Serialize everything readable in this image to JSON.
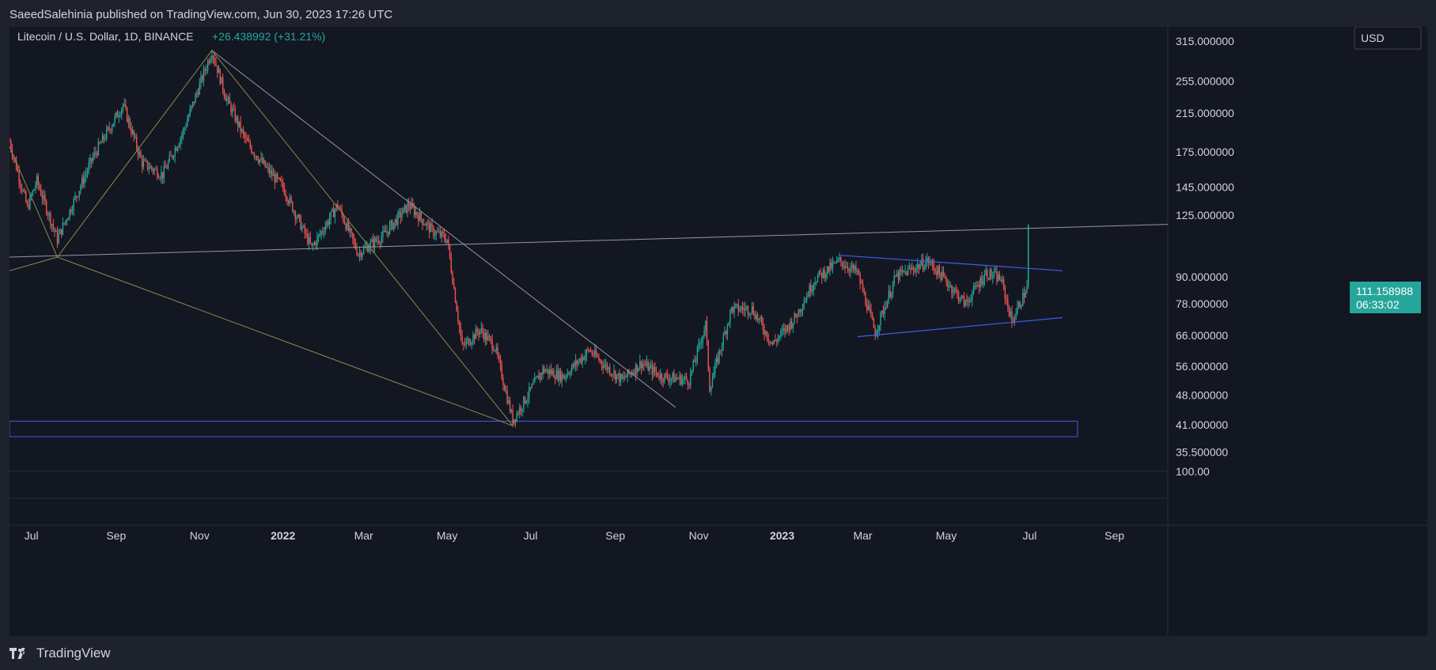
{
  "publisher_line": "SaeedSalehinia published on TradingView.com, Jun 30, 2023 17:26 UTC",
  "footer": {
    "brand": "TradingView",
    "logo_icon": "tradingview-logo-icon"
  },
  "legend": {
    "symbol": "Litecoin / U.S. Dollar, 1D, BINANCE",
    "change": "+26.438992 (+31.21%)"
  },
  "currency_button": "USD",
  "last_price": {
    "value": "111.158988",
    "countdown": "06:33:02"
  },
  "colors": {
    "up": "#26a69a",
    "down": "#ef5350",
    "background": "#131722",
    "frame": "#1e222d",
    "grid": "#2a2e39",
    "text": "#d1d4dc",
    "trendline": "#9598a1",
    "fib": "#8c8a4a",
    "channel": "#3f5ee8"
  },
  "chart_data": {
    "type": "candlestick",
    "scale": "log",
    "ylim": [
      32,
      340
    ],
    "price_ticks": [
      "315.000000",
      "255.000000",
      "215.000000",
      "175.000000",
      "145.000000",
      "125.000000",
      "90.000000",
      "78.000000",
      "66.000000",
      "56.000000",
      "48.000000",
      "41.000000",
      "35.500000"
    ],
    "indicator_tick": "100.00",
    "x_ticks": [
      {
        "label": "Jul",
        "date": "2021-07-01",
        "bold": false
      },
      {
        "label": "Sep",
        "date": "2021-09-01",
        "bold": false
      },
      {
        "label": "Nov",
        "date": "2021-11-01",
        "bold": false
      },
      {
        "label": "2022",
        "date": "2022-01-01",
        "bold": true
      },
      {
        "label": "Mar",
        "date": "2022-03-01",
        "bold": false
      },
      {
        "label": "May",
        "date": "2022-05-01",
        "bold": false
      },
      {
        "label": "Jul",
        "date": "2022-07-01",
        "bold": false
      },
      {
        "label": "Sep",
        "date": "2022-09-01",
        "bold": false
      },
      {
        "label": "Nov",
        "date": "2022-11-01",
        "bold": false
      },
      {
        "label": "2023",
        "date": "2023-01-01",
        "bold": true
      },
      {
        "label": "Mar",
        "date": "2023-03-01",
        "bold": false
      },
      {
        "label": "May",
        "date": "2023-05-01",
        "bold": false
      },
      {
        "label": "Jul",
        "date": "2023-07-01",
        "bold": false
      },
      {
        "label": "Sep",
        "date": "2023-09-01",
        "bold": false
      }
    ],
    "xlim": [
      "2021-06-15",
      "2023-10-10"
    ],
    "price_path": [
      [
        "2021-06-15",
        185
      ],
      [
        "2021-06-28",
        130
      ],
      [
        "2021-07-05",
        150
      ],
      [
        "2021-07-20",
        110
      ],
      [
        "2021-08-15",
        170
      ],
      [
        "2021-09-06",
        225
      ],
      [
        "2021-09-20",
        165
      ],
      [
        "2021-10-05",
        155
      ],
      [
        "2021-10-20",
        195
      ],
      [
        "2021-11-10",
        300
      ],
      [
        "2021-11-20",
        235
      ],
      [
        "2021-12-05",
        185
      ],
      [
        "2021-12-20",
        160
      ],
      [
        "2022-01-01",
        145
      ],
      [
        "2022-01-22",
        105
      ],
      [
        "2022-02-10",
        132
      ],
      [
        "2022-02-25",
        102
      ],
      [
        "2022-03-15",
        112
      ],
      [
        "2022-04-03",
        132
      ],
      [
        "2022-04-20",
        115
      ],
      [
        "2022-05-01",
        110
      ],
      [
        "2022-05-12",
        62
      ],
      [
        "2022-05-25",
        68
      ],
      [
        "2022-06-05",
        62
      ],
      [
        "2022-06-18",
        42
      ],
      [
        "2022-07-10",
        55
      ],
      [
        "2022-07-25",
        53
      ],
      [
        "2022-08-13",
        61
      ],
      [
        "2022-08-25",
        56
      ],
      [
        "2022-09-06",
        52
      ],
      [
        "2022-09-20",
        57
      ],
      [
        "2022-10-05",
        53
      ],
      [
        "2022-10-25",
        52
      ],
      [
        "2022-11-06",
        70
      ],
      [
        "2022-11-09",
        50
      ],
      [
        "2022-11-25",
        76
      ],
      [
        "2022-12-10",
        76
      ],
      [
        "2022-12-25",
        63
      ],
      [
        "2023-01-10",
        72
      ],
      [
        "2023-01-25",
        89
      ],
      [
        "2023-02-12",
        98
      ],
      [
        "2023-02-25",
        92
      ],
      [
        "2023-03-10",
        67
      ],
      [
        "2023-03-25",
        90
      ],
      [
        "2023-04-18",
        98
      ],
      [
        "2023-05-01",
        88
      ],
      [
        "2023-05-15",
        78
      ],
      [
        "2023-05-30",
        92
      ],
      [
        "2023-06-10",
        89
      ],
      [
        "2023-06-18",
        71
      ],
      [
        "2023-06-29",
        85
      ],
      [
        "2023-06-30",
        111.16
      ]
    ],
    "drawings": {
      "trendlines": [
        {
          "from": [
            "2021-06-15",
            100
          ],
          "to": [
            "2023-10-10",
            119
          ]
        },
        {
          "from": [
            "2021-11-10",
            300
          ],
          "to": [
            "2022-10-15",
            45
          ]
        }
      ],
      "fib_lines": [
        {
          "from": [
            "2021-06-15",
            180
          ],
          "to": [
            "2021-07-20",
            100
          ]
        },
        {
          "from": [
            "2021-06-15",
            93
          ],
          "to": [
            "2021-07-20",
            100
          ]
        },
        {
          "from": [
            "2021-07-20",
            100
          ],
          "to": [
            "2021-11-10",
            300
          ]
        },
        {
          "from": [
            "2021-11-10",
            300
          ],
          "to": [
            "2022-06-18",
            40.8
          ]
        },
        {
          "from": [
            "2021-07-20",
            100
          ],
          "to": [
            "2022-06-18",
            40.8
          ]
        }
      ],
      "triangle": [
        {
          "from": [
            "2023-02-12",
            101
          ],
          "to": [
            "2023-07-25",
            93
          ]
        },
        {
          "from": [
            "2023-02-25",
            65.5
          ],
          "to": [
            "2023-07-25",
            72.5
          ]
        }
      ],
      "zone": {
        "from": "2021-06-15",
        "to": "2023-08-05",
        "low": 38.5,
        "high": 41.8
      }
    }
  }
}
